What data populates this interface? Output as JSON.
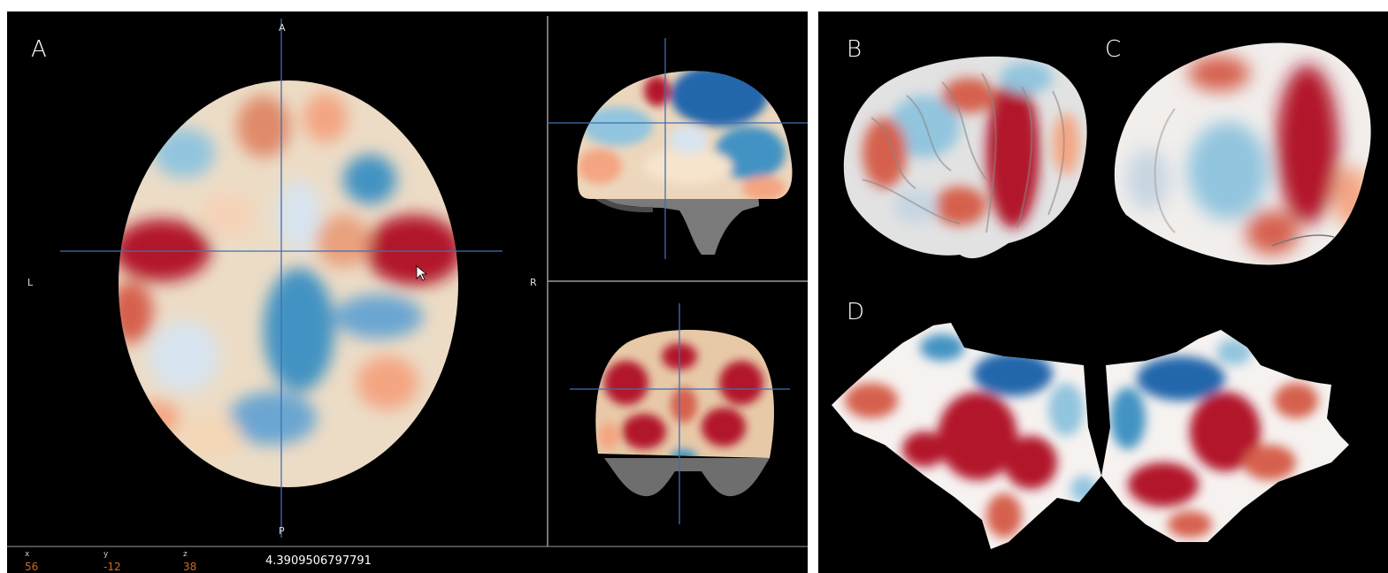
{
  "panels": {
    "a": {
      "letter": "A"
    },
    "b": {
      "letter": "B"
    },
    "c": {
      "letter": "C"
    },
    "d": {
      "letter": "D"
    }
  },
  "orientation": {
    "anterior": "A",
    "posterior": "P",
    "left": "L",
    "right": "R"
  },
  "cursor": {
    "x": {
      "label": "x",
      "value": "56"
    },
    "y": {
      "label": "y",
      "value": "-12"
    },
    "z": {
      "label": "z",
      "value": "38"
    },
    "voxel_value": "4.3909506797791"
  },
  "colors": {
    "crosshair": "#3d6fb5",
    "positive": "#b2182b",
    "negative": "#2166ac",
    "neutral": "#f7f7f7",
    "coordinate_value": "#d2691e"
  }
}
